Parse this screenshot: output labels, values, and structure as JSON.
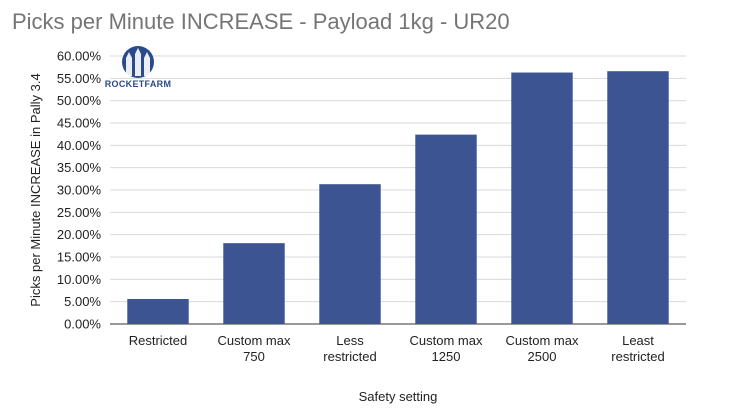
{
  "chart_data": {
    "type": "bar",
    "title": "Picks per Minute INCREASE - Payload 1kg - UR20",
    "xlabel": "Safety setting",
    "ylabel": "Picks per Minute INCREASE in Pally 3.4",
    "categories": [
      [
        "Restricted"
      ],
      [
        "Custom max",
        "750"
      ],
      [
        "Less",
        "restricted"
      ],
      [
        "Custom max",
        "1250"
      ],
      [
        "Custom max",
        "2500"
      ],
      [
        "Least",
        "restricted"
      ]
    ],
    "values": [
      5.6,
      18.1,
      31.3,
      42.4,
      56.3,
      56.6
    ],
    "ylim": [
      0,
      60
    ],
    "yticks": [
      0,
      5,
      10,
      15,
      20,
      25,
      30,
      35,
      40,
      45,
      50,
      55,
      60
    ],
    "ytick_labels": [
      "0.00%",
      "5.00%",
      "10.00%",
      "15.00%",
      "20.00%",
      "25.00%",
      "30.00%",
      "35.00%",
      "40.00%",
      "45.00%",
      "50.00%",
      "55.00%",
      "60.00%"
    ],
    "grid": true,
    "legend": "none",
    "bar_color": "#3c5592"
  },
  "logo": {
    "text": "ROCKETFARM",
    "color": "#2b4a8c"
  }
}
